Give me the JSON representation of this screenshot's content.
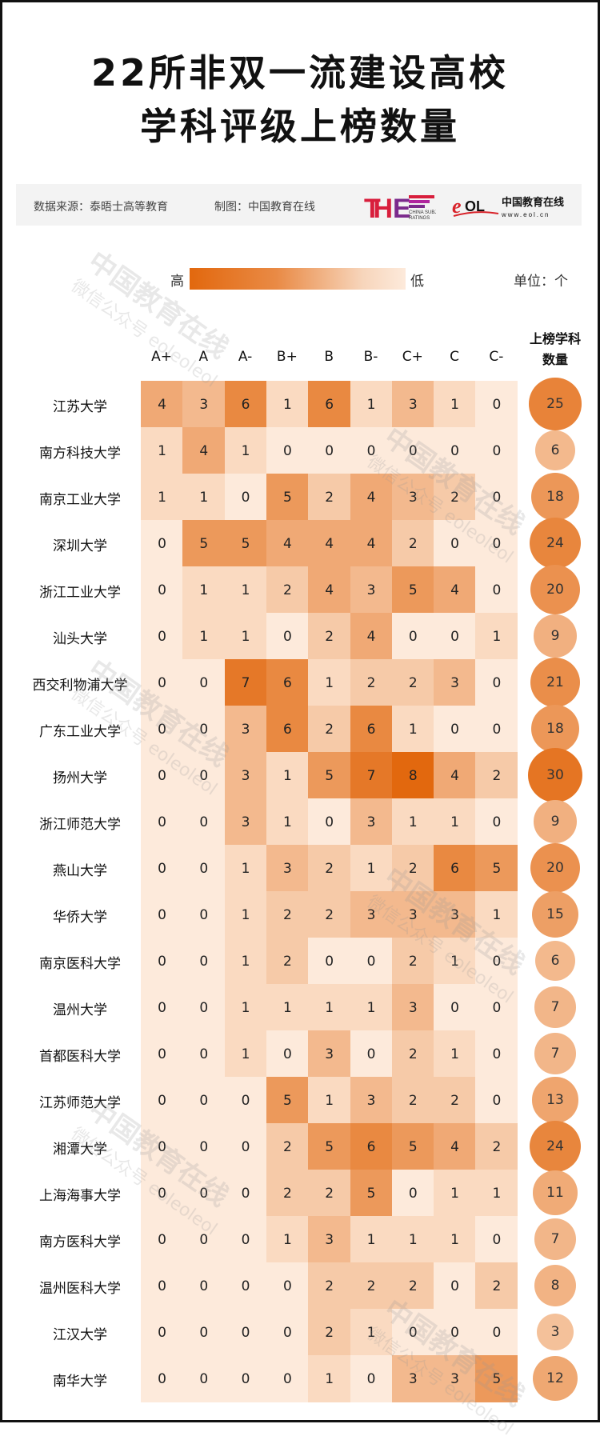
{
  "title_line1": "22所非双一流建设高校",
  "title_line2": "学科评级上榜数量",
  "info": {
    "source": "数据来源：泰晤士高等教育",
    "made_by": "制图：中国教育在线",
    "the_logo_text": "THE CHINA SUBJECT RATINGS",
    "eol_logo_text": "eol 中国教育在线 www.eol.cn"
  },
  "legend": {
    "high": "高",
    "low": "低",
    "unit": "单位：个"
  },
  "watermark": {
    "main": "中国教育在线",
    "sub": "微信公众号 eoleoleol"
  },
  "colors": {
    "low": "#fdeadb",
    "high": "#e2680e"
  },
  "chart_data": {
    "type": "heatmap",
    "title": "22所非双一流建设高校 学科评级上榜数量",
    "columns": [
      "A+",
      "A",
      "A-",
      "B+",
      "B",
      "B-",
      "C+",
      "C",
      "C-"
    ],
    "total_header": [
      "上榜学科",
      "数量"
    ],
    "color_scale": {
      "min": 0,
      "max": 8,
      "min_label": "低",
      "max_label": "高"
    },
    "rows": [
      {
        "name": "江苏大学",
        "values": [
          4,
          3,
          6,
          1,
          6,
          1,
          3,
          1,
          0
        ],
        "total": 25
      },
      {
        "name": "南方科技大学",
        "values": [
          1,
          4,
          1,
          0,
          0,
          0,
          0,
          0,
          0
        ],
        "total": 6
      },
      {
        "name": "南京工业大学",
        "values": [
          1,
          1,
          0,
          5,
          2,
          4,
          3,
          2,
          0
        ],
        "total": 18
      },
      {
        "name": "深圳大学",
        "values": [
          0,
          5,
          5,
          4,
          4,
          4,
          2,
          0,
          0
        ],
        "total": 24
      },
      {
        "name": "浙江工业大学",
        "values": [
          0,
          1,
          1,
          2,
          4,
          3,
          5,
          4,
          0
        ],
        "total": 20
      },
      {
        "name": "汕头大学",
        "values": [
          0,
          1,
          1,
          0,
          2,
          4,
          0,
          0,
          1
        ],
        "total": 9
      },
      {
        "name": "西交利物浦大学",
        "values": [
          0,
          0,
          7,
          6,
          1,
          2,
          2,
          3,
          0
        ],
        "total": 21
      },
      {
        "name": "广东工业大学",
        "values": [
          0,
          0,
          3,
          6,
          2,
          6,
          1,
          0,
          0
        ],
        "total": 18
      },
      {
        "name": "扬州大学",
        "values": [
          0,
          0,
          3,
          1,
          5,
          7,
          8,
          4,
          2
        ],
        "total": 30
      },
      {
        "name": "浙江师范大学",
        "values": [
          0,
          0,
          3,
          1,
          0,
          3,
          1,
          1,
          0
        ],
        "total": 9
      },
      {
        "name": "燕山大学",
        "values": [
          0,
          0,
          1,
          3,
          2,
          1,
          2,
          6,
          5
        ],
        "total": 20
      },
      {
        "name": "华侨大学",
        "values": [
          0,
          0,
          1,
          2,
          2,
          3,
          3,
          3,
          1
        ],
        "total": 15
      },
      {
        "name": "南京医科大学",
        "values": [
          0,
          0,
          1,
          2,
          0,
          0,
          2,
          1,
          0
        ],
        "total": 6
      },
      {
        "name": "温州大学",
        "values": [
          0,
          0,
          1,
          1,
          1,
          1,
          3,
          0,
          0
        ],
        "total": 7
      },
      {
        "name": "首都医科大学",
        "values": [
          0,
          0,
          1,
          0,
          3,
          0,
          2,
          1,
          0
        ],
        "total": 7
      },
      {
        "name": "江苏师范大学",
        "values": [
          0,
          0,
          0,
          5,
          1,
          3,
          2,
          2,
          0
        ],
        "total": 13
      },
      {
        "name": "湘潭大学",
        "values": [
          0,
          0,
          0,
          2,
          5,
          6,
          5,
          4,
          2
        ],
        "total": 24
      },
      {
        "name": "上海海事大学",
        "values": [
          0,
          0,
          0,
          2,
          2,
          5,
          0,
          1,
          1
        ],
        "total": 11
      },
      {
        "name": "南方医科大学",
        "values": [
          0,
          0,
          0,
          1,
          3,
          1,
          1,
          1,
          0
        ],
        "total": 7
      },
      {
        "name": "温州医科大学",
        "values": [
          0,
          0,
          0,
          0,
          2,
          2,
          2,
          0,
          2
        ],
        "total": 8
      },
      {
        "name": "江汉大学",
        "values": [
          0,
          0,
          0,
          0,
          2,
          1,
          0,
          0,
          0
        ],
        "total": 3
      },
      {
        "name": "南华大学",
        "values": [
          0,
          0,
          0,
          0,
          1,
          0,
          3,
          3,
          5
        ],
        "total": 12
      }
    ]
  }
}
